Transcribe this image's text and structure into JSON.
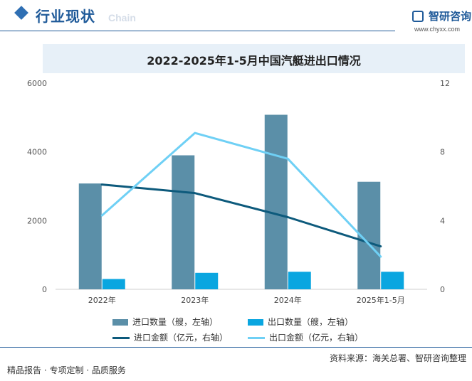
{
  "header": {
    "section_title": "行业现状",
    "section_subtitle": "Chain",
    "logo_name": "智研咨询",
    "logo_url": "www.chyxx.com"
  },
  "chart_data": {
    "type": "bar",
    "title": "2022-2025年1-5月中国汽艇进出口情况",
    "categories": [
      "2022年",
      "2023年",
      "2024年",
      "2025年1-5月"
    ],
    "y_left": {
      "ylim": [
        0,
        6000
      ],
      "ticks": [
        0,
        2000,
        4000,
        6000
      ]
    },
    "y_right": {
      "ylim": [
        0,
        12
      ],
      "ticks": [
        0,
        4,
        8,
        12
      ]
    },
    "series": [
      {
        "name": "进口数量（艘，左轴）",
        "kind": "bar",
        "axis": "left",
        "color": "#5b8fa8",
        "values": [
          3080,
          3900,
          5080,
          3130
        ]
      },
      {
        "name": "出口数量（艘，左轴）",
        "kind": "bar",
        "axis": "left",
        "color": "#0aa6e0",
        "values": [
          300,
          480,
          510,
          510
        ]
      },
      {
        "name": "进口金额（亿元，右轴）",
        "kind": "line",
        "axis": "right",
        "color": "#0d5a7c",
        "values": [
          6.1,
          5.6,
          4.2,
          2.5
        ]
      },
      {
        "name": "出口金额（亿元，右轴）",
        "kind": "line",
        "axis": "right",
        "color": "#6fd0f5",
        "values": [
          4.3,
          9.1,
          7.6,
          1.9
        ]
      }
    ]
  },
  "footer": {
    "source": "资料来源：海关总署、智研咨询整理",
    "slogan": "精品报告 · 专项定制 · 品质服务"
  }
}
